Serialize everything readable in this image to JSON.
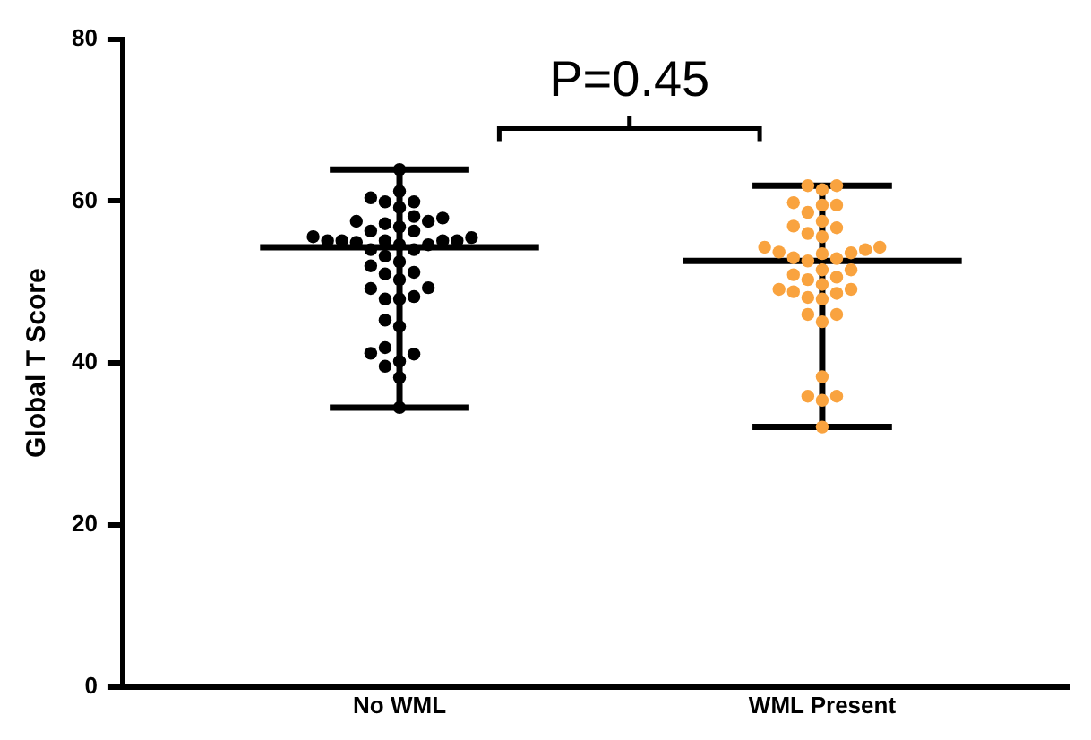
{
  "chart_data": {
    "type": "box",
    "categories": [
      "No WML",
      "WML Present"
    ],
    "ylabel": "Global T Score",
    "ylim": [
      0,
      80
    ],
    "yticks": [
      0,
      20,
      40,
      60,
      80
    ],
    "grid": false,
    "legend": false,
    "marker": "circle",
    "color": "#000000",
    "annotations": [
      "P=0.45"
    ],
    "boxes": [
      {
        "low": 34.5,
        "q1": 54.3,
        "median": 54.3,
        "q3": 54.3,
        "high": 63.9
      },
      {
        "low": 32.1,
        "q1": 52.6,
        "median": 52.6,
        "q3": 52.6,
        "high": 61.9
      }
    ],
    "series": [
      {
        "type": "scatter",
        "color": "#000000",
        "x": [
          "No WML",
          "No WML",
          "No WML",
          "No WML",
          "No WML",
          "No WML",
          "No WML",
          "No WML",
          "No WML",
          "No WML",
          "No WML",
          "No WML",
          "No WML",
          "No WML",
          "No WML",
          "No WML",
          "No WML",
          "No WML",
          "No WML",
          "No WML",
          "No WML",
          "No WML",
          "No WML",
          "No WML",
          "No WML",
          "No WML",
          "No WML",
          "No WML",
          "No WML",
          "No WML",
          "No WML",
          "No WML",
          "No WML",
          "No WML",
          "No WML",
          "No WML",
          "No WML",
          "No WML",
          "No WML",
          "No WML",
          "No WML",
          "No WML",
          "No WML",
          "No WML",
          "No WML",
          "No WML"
        ],
        "values": [
          63.9,
          61.2,
          59.9,
          59.2,
          59.9,
          60.4,
          58.1,
          57.5,
          57.2,
          56.3,
          56.3,
          56.8,
          57.5,
          57.9,
          55.5,
          55.1,
          55.1,
          54.9,
          54.6,
          54.0,
          54.0,
          54.6,
          55.1,
          55.1,
          55.1,
          55.6,
          52.5,
          51.2,
          51.0,
          52.0,
          53.2,
          49.3,
          48.2,
          47.9,
          47.9,
          49.2,
          50.3,
          45.3,
          44.5,
          41.9,
          41.1,
          40.2,
          41.2,
          39.6,
          38.2,
          34.5
        ]
      },
      {
        "type": "scatter",
        "color": "#f9a33f",
        "x": [
          "WML Present",
          "WML Present",
          "WML Present",
          "WML Present",
          "WML Present",
          "WML Present",
          "WML Present",
          "WML Present",
          "WML Present",
          "WML Present",
          "WML Present",
          "WML Present",
          "WML Present",
          "WML Present",
          "WML Present",
          "WML Present",
          "WML Present",
          "WML Present",
          "WML Present",
          "WML Present",
          "WML Present",
          "WML Present",
          "WML Present",
          "WML Present",
          "WML Present",
          "WML Present",
          "WML Present",
          "WML Present",
          "WML Present",
          "WML Present",
          "WML Present",
          "WML Present",
          "WML Present",
          "WML Present",
          "WML Present",
          "WML Present",
          "WML Present",
          "WML Present",
          "WML Present",
          "WML Present",
          "WML Present"
        ],
        "values": [
          61.9,
          61.4,
          61.9,
          59.5,
          58.6,
          59.5,
          59.8,
          57.5,
          56.7,
          56.0,
          56.9,
          55.6,
          54.3,
          53.7,
          53.5,
          53.6,
          54.0,
          54.3,
          52.9,
          52.6,
          53.0,
          51.5,
          50.9,
          50.6,
          51.5,
          49.7,
          49.1,
          48.6,
          47.9,
          48.1,
          48.8,
          49.1,
          50.3,
          46.0,
          45.1,
          46.0,
          38.3,
          35.9,
          35.4,
          35.9,
          32.1
        ]
      }
    ]
  }
}
